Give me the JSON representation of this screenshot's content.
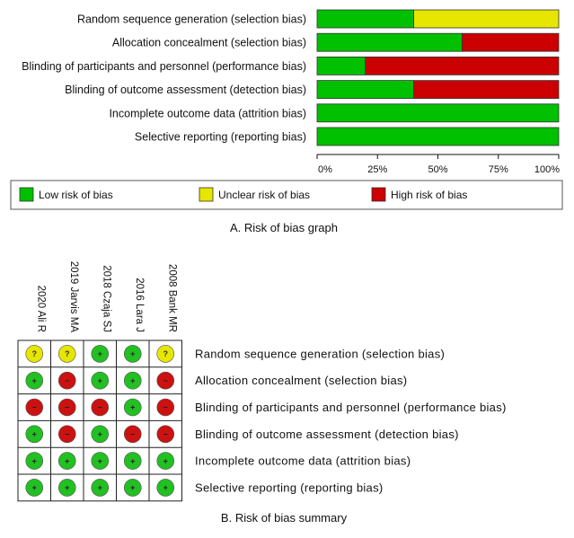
{
  "chart_data": [
    {
      "type": "bar",
      "subtype": "stacked-horizontal-percent",
      "caption": "A. Risk of bias graph",
      "domains": [
        "Random sequence generation (selection bias)",
        "Allocation concealment (selection bias)",
        "Blinding of participants and personnel (performance bias)",
        "Blinding of outcome assessment (detection bias)",
        "Incomplete outcome data (attrition bias)",
        "Selective reporting (reporting bias)"
      ],
      "x_ticks": [
        "0%",
        "25%",
        "50%",
        "75%",
        "100%"
      ],
      "xlim": [
        0,
        100
      ],
      "series": [
        {
          "name": "Low risk of bias",
          "color": "#00c000",
          "values": [
            40,
            60,
            20,
            40,
            100,
            100
          ]
        },
        {
          "name": "Unclear risk of bias",
          "color": "#e6e600",
          "values": [
            60,
            0,
            0,
            0,
            0,
            0
          ]
        },
        {
          "name": "High risk of bias",
          "color": "#cc0000",
          "values": [
            0,
            40,
            80,
            60,
            0,
            0
          ]
        }
      ],
      "legend_position": "bottom"
    },
    {
      "type": "table",
      "subtype": "risk-of-bias-summary",
      "caption": "B. Risk of bias summary",
      "studies": [
        "2020 Ali R",
        "2019 Jarvis MA",
        "2018 Czaja SJ",
        "2016 Lara J",
        "2008 Bank MR"
      ],
      "domains": [
        "Random sequence generation (selection bias)",
        "Allocation concealment (selection bias)",
        "Blinding of participants and personnel (performance bias)",
        "Blinding of outcome assessment (detection bias)",
        "Incomplete outcome data (attrition bias)",
        "Selective reporting (reporting bias)"
      ],
      "judgements": [
        [
          "unclear",
          "unclear",
          "low",
          "low",
          "unclear"
        ],
        [
          "low",
          "high",
          "low",
          "low",
          "high"
        ],
        [
          "high",
          "high",
          "high",
          "low",
          "high"
        ],
        [
          "low",
          "high",
          "low",
          "high",
          "high"
        ],
        [
          "low",
          "low",
          "low",
          "low",
          "low"
        ],
        [
          "low",
          "low",
          "low",
          "low",
          "low"
        ]
      ],
      "symbols": {
        "low": "+",
        "unclear": "?",
        "high": "−"
      },
      "colors": {
        "low": "#22c022",
        "unclear": "#e6e600",
        "high": "#cc1111"
      }
    }
  ]
}
